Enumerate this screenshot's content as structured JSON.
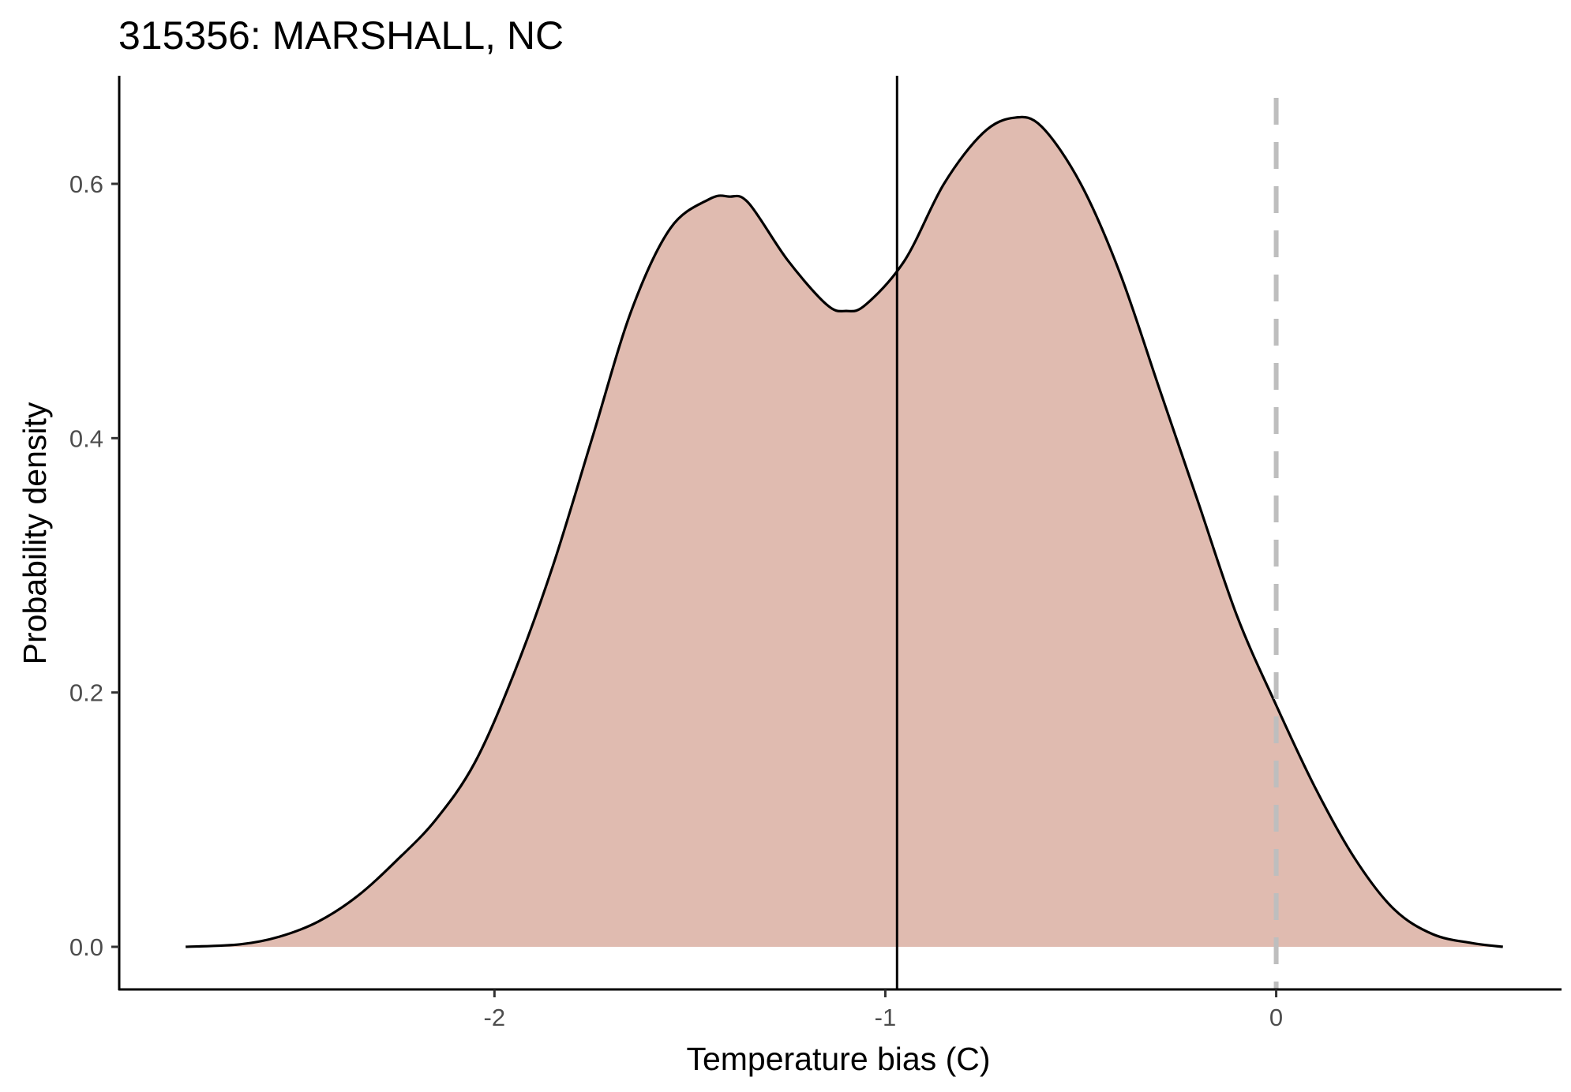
{
  "chart_data": {
    "type": "area",
    "title": "315356: MARSHALL, NC",
    "xlabel": "Temperature bias (C)",
    "ylabel": "Probability density",
    "xlim": [
      -2.96,
      0.73
    ],
    "ylim": [
      -0.0335,
      0.685
    ],
    "x_ticks": [
      -2,
      -1,
      0
    ],
    "x_tick_labels": [
      "-2",
      "-1",
      "0"
    ],
    "y_ticks": [
      0.0,
      0.2,
      0.4,
      0.6
    ],
    "y_tick_labels": [
      "0.0",
      "0.2",
      "0.4",
      "0.6"
    ],
    "grid": false,
    "legend": "none",
    "series": [
      {
        "fill_color": "#e0bbb0",
        "line_color": "#000000",
        "x": [
          -2.79,
          -2.65,
          -2.55,
          -2.45,
          -2.35,
          -2.25,
          -2.15,
          -2.05,
          -1.95,
          -1.85,
          -1.75,
          -1.65,
          -1.55,
          -1.45,
          -1.4,
          -1.35,
          -1.25,
          -1.15,
          -1.1,
          -1.05,
          -0.95,
          -0.85,
          -0.75,
          -0.67,
          -0.6,
          -0.5,
          -0.4,
          -0.3,
          -0.2,
          -0.1,
          0.0,
          0.1,
          0.2,
          0.3,
          0.4,
          0.5,
          0.58
        ],
        "values": [
          0.0,
          0.002,
          0.008,
          0.02,
          0.04,
          0.068,
          0.1,
          0.145,
          0.215,
          0.3,
          0.4,
          0.5,
          0.565,
          0.588,
          0.59,
          0.585,
          0.54,
          0.505,
          0.5,
          0.505,
          0.54,
          0.6,
          0.64,
          0.652,
          0.645,
          0.6,
          0.53,
          0.44,
          0.35,
          0.26,
          0.19,
          0.125,
          0.07,
          0.03,
          0.01,
          0.003,
          0.0
        ]
      }
    ],
    "reference_lines": [
      {
        "x": -0.97,
        "style": "solid",
        "color": "#000000"
      },
      {
        "x": 0,
        "style": "dashed",
        "color": "#bebebe"
      }
    ]
  }
}
